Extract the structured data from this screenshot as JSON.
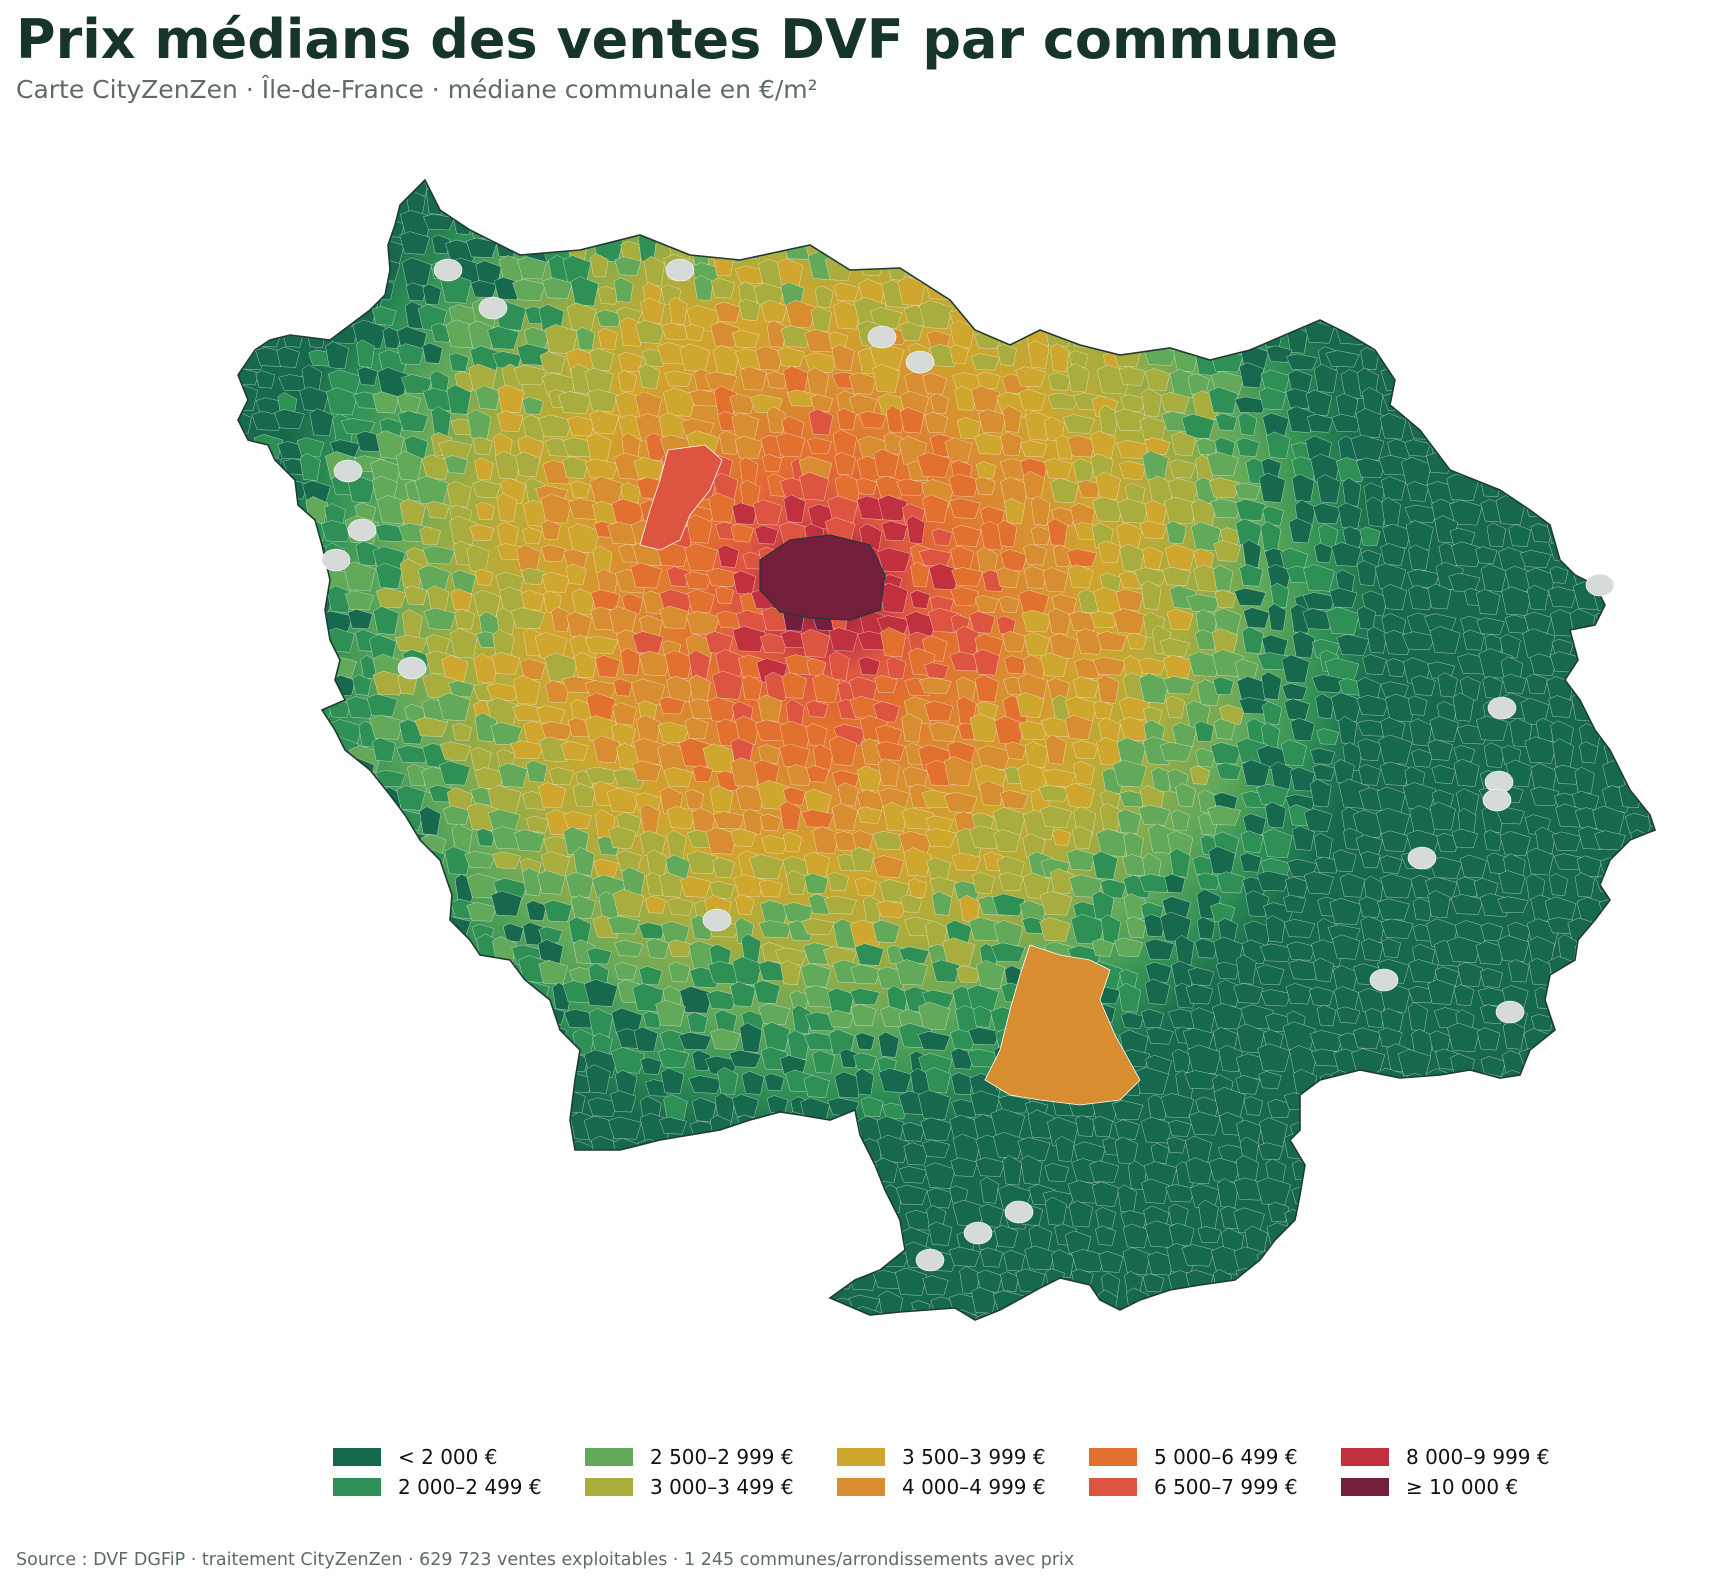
{
  "header": {
    "title": "Prix médians des ventes DVF par commune",
    "subtitle": "Carte CityZenZen · Île-de-France · médiane communale en €/m²"
  },
  "legend": {
    "items": [
      {
        "label": "< 2 000 €",
        "color": "#17694d"
      },
      {
        "label": "2 000–2 499 €",
        "color": "#2e9054"
      },
      {
        "label": "2 500–2 999 €",
        "color": "#62a95a"
      },
      {
        "label": "3 000–3 499 €",
        "color": "#a9ad3d"
      },
      {
        "label": "3 500–3 999 €",
        "color": "#cfa62e"
      },
      {
        "label": "4 000–4 999 €",
        "color": "#d88e30"
      },
      {
        "label": "5 000–6 499 €",
        "color": "#e2712f"
      },
      {
        "label": "6 500–7 999 €",
        "color": "#dd5540"
      },
      {
        "label": "8 000–9 999 €",
        "color": "#c0303f"
      },
      {
        "label": "≥ 10 000 €",
        "color": "#741e3d"
      }
    ]
  },
  "map": {
    "no_data_color": "#d6dbd9",
    "border_color": "#1f3b32"
  },
  "footer": {
    "source": "Source : DVF DGFiP · traitement CityZenZen · 629 723 ventes exploitables · 1 245 communes/arrondissements avec prix"
  }
}
